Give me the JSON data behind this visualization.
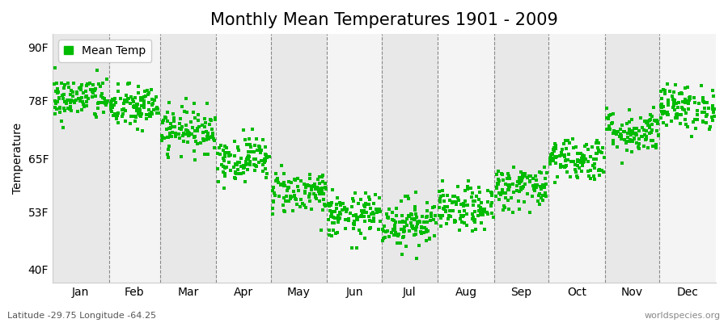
{
  "title": "Monthly Mean Temperatures 1901 - 2009",
  "ylabel": "Temperature",
  "y_ticks": [
    40,
    53,
    65,
    78,
    90
  ],
  "y_tick_labels": [
    "40F",
    "53F",
    "65F",
    "78F",
    "90F"
  ],
  "ylim": [
    37,
    93
  ],
  "months": [
    "Jan",
    "Feb",
    "Mar",
    "Apr",
    "May",
    "Jun",
    "Jul",
    "Aug",
    "Sep",
    "Oct",
    "Nov",
    "Dec"
  ],
  "month_days": [
    31,
    28,
    31,
    30,
    31,
    30,
    31,
    31,
    30,
    31,
    30,
    31
  ],
  "month_mean_temps_f": [
    78.5,
    76.5,
    71.5,
    65.0,
    57.5,
    52.0,
    50.5,
    53.5,
    58.5,
    65.0,
    71.0,
    76.5
  ],
  "month_std_temps_f": [
    2.5,
    2.5,
    2.5,
    2.5,
    2.5,
    2.5,
    2.8,
    2.5,
    2.5,
    2.5,
    2.5,
    2.5
  ],
  "n_years": 109,
  "dot_color": "#00bb00",
  "dot_size": 8,
  "background_color": "#ffffff",
  "plot_bg_color": "#ffffff",
  "band_color_odd": "#e8e8e8",
  "band_color_even": "#f4f4f4",
  "grid_color": "#888888",
  "title_fontsize": 15,
  "axis_label_fontsize": 10,
  "tick_fontsize": 10,
  "legend_label": "Mean Temp",
  "footer_left": "Latitude -29.75 Longitude -64.25",
  "footer_right": "worldspecies.org",
  "footer_fontsize": 8,
  "seed": 42
}
